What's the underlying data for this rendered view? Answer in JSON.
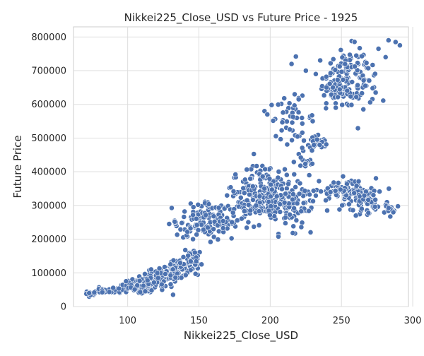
{
  "chart_data": {
    "type": "scatter",
    "title": "Nikkei225_Close_USD vs Future Price - 1925",
    "xlabel": "Nikkei225_Close_USD",
    "ylabel": "Future Price",
    "xlim": [
      62,
      297
    ],
    "ylim": [
      0,
      830000
    ],
    "xticks": [
      100,
      150,
      200,
      250,
      300
    ],
    "yticks": [
      0,
      100000,
      200000,
      300000,
      400000,
      500000,
      600000,
      700000,
      800000
    ],
    "xtick_labels": [
      "100",
      "150",
      "200",
      "250",
      "300"
    ],
    "ytick_labels": [
      "0",
      "100000",
      "200000",
      "300000",
      "400000",
      "500000",
      "600000",
      "700000",
      "800000"
    ],
    "grid": true,
    "legend": "none",
    "marker_color": "#4c72b0",
    "marker_edge": "#ffffff",
    "clusters": [
      {
        "cx": 75,
        "cy": 40000,
        "sx": 3,
        "sy": 4000,
        "n": 12
      },
      {
        "cx": 85,
        "cy": 48000,
        "sx": 4,
        "sy": 5000,
        "n": 18
      },
      {
        "cx": 95,
        "cy": 52000,
        "sx": 3,
        "sy": 5000,
        "n": 14
      },
      {
        "cx": 105,
        "cy": 62000,
        "sx": 4,
        "sy": 12000,
        "n": 40
      },
      {
        "cx": 112,
        "cy": 55000,
        "sx": 4,
        "sy": 8000,
        "n": 45
      },
      {
        "cx": 120,
        "cy": 80000,
        "sx": 5,
        "sy": 15000,
        "n": 50
      },
      {
        "cx": 128,
        "cy": 95000,
        "sx": 5,
        "sy": 18000,
        "n": 45
      },
      {
        "cx": 137,
        "cy": 110000,
        "sx": 5,
        "sy": 18000,
        "n": 50
      },
      {
        "cx": 145,
        "cy": 135000,
        "sx": 4,
        "sy": 15000,
        "n": 40
      },
      {
        "cx": 145,
        "cy": 240000,
        "sx": 6,
        "sy": 25000,
        "n": 45
      },
      {
        "cx": 155,
        "cy": 265000,
        "sx": 6,
        "sy": 25000,
        "n": 55
      },
      {
        "cx": 165,
        "cy": 255000,
        "sx": 5,
        "sy": 22000,
        "n": 35
      },
      {
        "cx": 180,
        "cy": 310000,
        "sx": 6,
        "sy": 40000,
        "n": 45
      },
      {
        "cx": 190,
        "cy": 330000,
        "sx": 7,
        "sy": 45000,
        "n": 70
      },
      {
        "cx": 200,
        "cy": 340000,
        "sx": 7,
        "sy": 45000,
        "n": 90
      },
      {
        "cx": 212,
        "cy": 300000,
        "sx": 6,
        "sy": 40000,
        "n": 60
      },
      {
        "cx": 222,
        "cy": 320000,
        "sx": 6,
        "sy": 30000,
        "n": 40
      },
      {
        "cx": 215,
        "cy": 560000,
        "sx": 8,
        "sy": 30000,
        "n": 45
      },
      {
        "cx": 232,
        "cy": 480000,
        "sx": 6,
        "sy": 15000,
        "n": 30
      },
      {
        "cx": 225,
        "cy": 430000,
        "sx": 4,
        "sy": 12000,
        "n": 15
      },
      {
        "cx": 245,
        "cy": 640000,
        "sx": 6,
        "sy": 25000,
        "n": 50
      },
      {
        "cx": 255,
        "cy": 690000,
        "sx": 7,
        "sy": 40000,
        "n": 80
      },
      {
        "cx": 265,
        "cy": 670000,
        "sx": 6,
        "sy": 35000,
        "n": 40
      },
      {
        "cx": 258,
        "cy": 330000,
        "sx": 8,
        "sy": 25000,
        "n": 70
      },
      {
        "cx": 270,
        "cy": 310000,
        "sx": 7,
        "sy": 25000,
        "n": 45
      },
      {
        "cx": 285,
        "cy": 290000,
        "sx": 4,
        "sy": 8000,
        "n": 12
      },
      {
        "cx": 245,
        "cy": 340000,
        "sx": 5,
        "sy": 15000,
        "n": 25
      }
    ],
    "outliers": [
      {
        "x": 218,
        "y": 742000
      },
      {
        "x": 225,
        "y": 700000
      },
      {
        "x": 215,
        "y": 720000
      },
      {
        "x": 283,
        "y": 790000
      },
      {
        "x": 288,
        "y": 785000
      },
      {
        "x": 291,
        "y": 775000
      },
      {
        "x": 276,
        "y": 765000
      },
      {
        "x": 281,
        "y": 740000
      },
      {
        "x": 274,
        "y": 635000
      },
      {
        "x": 196,
        "y": 580000
      },
      {
        "x": 198,
        "y": 570000
      },
      {
        "x": 133,
        "y": 252000
      },
      {
        "x": 71,
        "y": 38000
      },
      {
        "x": 73,
        "y": 40000
      },
      {
        "x": 240,
        "y": 285000
      },
      {
        "x": 220,
        "y": 615000
      },
      {
        "x": 232,
        "y": 690000
      },
      {
        "x": 246,
        "y": 590000
      }
    ]
  }
}
